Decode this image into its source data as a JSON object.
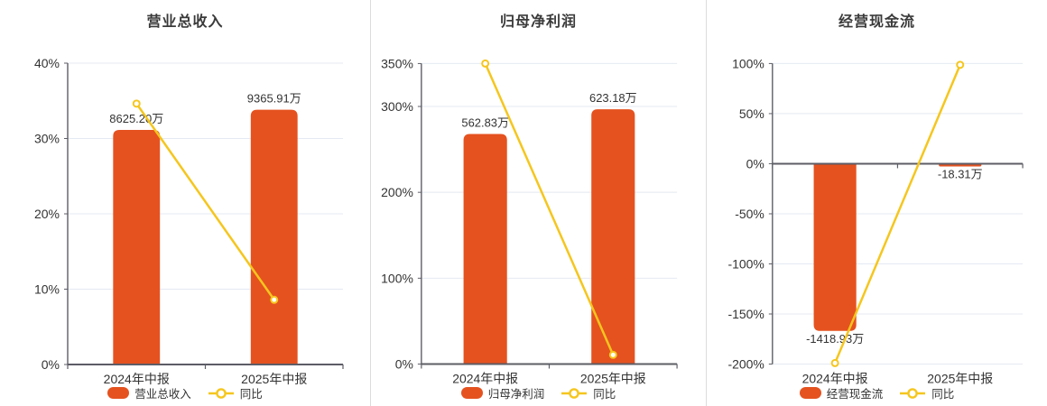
{
  "colors": {
    "bar": "#E5521F",
    "line": "#F5C61E",
    "grid": "#E4E9F2",
    "axis": "#5D5D66",
    "text": "#333333",
    "divider": "#DCDCDC",
    "background": "#FFFFFF"
  },
  "chart_data": [
    {
      "type": "bar+line",
      "title": "营业总收入",
      "categories": [
        "2024年中报",
        "2025年中报"
      ],
      "bar_series": {
        "name": "营业总收入",
        "unit": "万",
        "values": [
          8625.2,
          9365.91
        ],
        "value_labels": [
          "8625.20万",
          "9365.91万"
        ]
      },
      "line_series": {
        "name": "同比",
        "unit": "%",
        "values": [
          34.63,
          8.59
        ]
      },
      "y_axis": {
        "min": 0,
        "max": 40,
        "ticks": [
          0,
          10,
          20,
          30,
          40
        ],
        "suffix": "%",
        "grid": true
      },
      "bar_axis": {
        "min": 0,
        "max": 11080
      },
      "legend_position": "bottom"
    },
    {
      "type": "bar+line",
      "title": "归母净利润",
      "categories": [
        "2024年中报",
        "2025年中报"
      ],
      "bar_series": {
        "name": "归母净利润",
        "unit": "万",
        "values": [
          562.83,
          623.18
        ],
        "value_labels": [
          "562.83万",
          "623.18万"
        ]
      },
      "line_series": {
        "name": "同比",
        "unit": "%",
        "values": [
          350.0,
          10.72
        ]
      },
      "y_axis": {
        "min": 0,
        "max": 350,
        "ticks": [
          0,
          100,
          200,
          300,
          350
        ],
        "suffix": "%",
        "grid": true
      },
      "bar_axis": {
        "min": 0,
        "max": 735
      },
      "legend_position": "bottom"
    },
    {
      "type": "bar+line",
      "title": "经营现金流",
      "categories": [
        "2024年中报",
        "2025年中报"
      ],
      "bar_series": {
        "name": "经营现金流",
        "unit": "万",
        "values": [
          -1418.93,
          -18.31
        ],
        "value_labels": [
          "-1418.93万",
          "-18.31万"
        ]
      },
      "line_series": {
        "name": "同比",
        "unit": "%",
        "values": [
          -199.0,
          98.71
        ]
      },
      "y_axis": {
        "min": -200,
        "max": 100,
        "ticks": [
          -200,
          -150,
          -100,
          -50,
          0,
          50,
          100
        ],
        "suffix": "%",
        "grid": true
      },
      "bar_axis": {
        "min": -1700,
        "max": 850
      },
      "legend_position": "bottom"
    }
  ]
}
